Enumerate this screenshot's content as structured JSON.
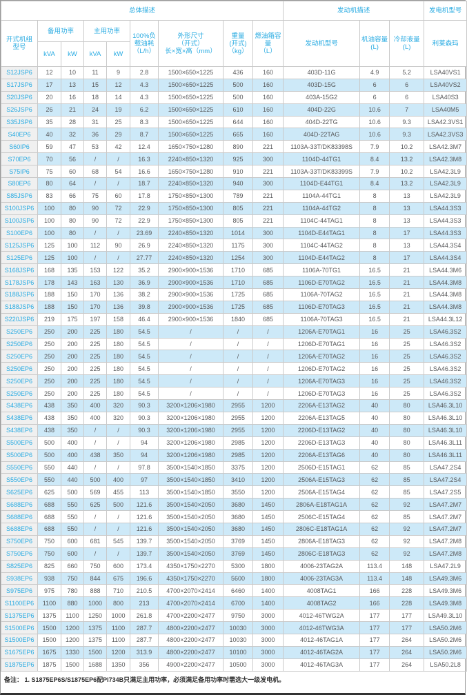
{
  "colors": {
    "accent_cyan": "#29abe2",
    "row_stripe_blue": "#cde9f8",
    "model_column_gray": "#f0f0f0",
    "border_gray": "#c9c9c9"
  },
  "table": {
    "header": {
      "overall_group": "总体描述",
      "engine_group": "发动机描述",
      "generator_group": "发电机型号",
      "model": "开式机组\n型号",
      "standby_power": "备用功率",
      "prime_power": "主用功率",
      "kva": "kVA",
      "kw": "kW",
      "fuel_consumption": "100%负\n载油耗\n（L/h）",
      "dimensions": "外形尺寸\n（开式）\n长×宽×高（mm）",
      "weight": "重量\n(开式)\n（kg）",
      "fuel_tank": "燃油箱容\n量\n（L）",
      "engine_model": "发动机型号",
      "oil_capacity": "机油容量\n(L)",
      "coolant_capacity": "冷却液量\n(L)",
      "alternator": "利莱森玛"
    },
    "rows": [
      [
        "S12JSP6",
        "12",
        "10",
        "11",
        "9",
        "2.8",
        "1500×650×1225",
        "436",
        "160",
        "403D-11G",
        "4.9",
        "5.2",
        "LSA40VS1"
      ],
      [
        "S17JSP6",
        "17",
        "13",
        "15",
        "12",
        "4.3",
        "1500×650×1225",
        "500",
        "160",
        "403D-15G",
        "6",
        "6",
        "LSA40VS2"
      ],
      [
        "S20JSP6",
        "20",
        "16",
        "18",
        "14",
        "4.3",
        "1500×650×1225",
        "500",
        "160",
        "403A-15G2",
        "6",
        "6",
        "LSA40S3"
      ],
      [
        "S26JSP6",
        "26",
        "21",
        "24",
        "19",
        "6.2",
        "1500×650×1225",
        "610",
        "160",
        "404D-22G",
        "10.6",
        "7",
        "LSA40M5"
      ],
      [
        "S35JSP6",
        "35",
        "28",
        "31",
        "25",
        "8.3",
        "1500×650×1225",
        "644",
        "160",
        "404D-22TG",
        "10.6",
        "9.3",
        "LSA42.3VS1"
      ],
      [
        "S40EP6",
        "40",
        "32",
        "36",
        "29",
        "8.7",
        "1500×650×1225",
        "665",
        "160",
        "404D-22TAG",
        "10.6",
        "9.3",
        "LSA42.3VS3"
      ],
      [
        "S60IP6",
        "59",
        "47",
        "53",
        "42",
        "12.4",
        "1650×750×1280",
        "890",
        "221",
        "1103A-33T/DK83398S",
        "7.9",
        "10.2",
        "LSA42.3M7"
      ],
      [
        "S70EP6",
        "70",
        "56",
        "/",
        "/",
        "16.3",
        "2240×850×1320",
        "925",
        "300",
        "1104D-44TG1",
        "8.4",
        "13.2",
        "LSA42.3M8"
      ],
      [
        "S75IP6",
        "75",
        "60",
        "68",
        "54",
        "16.6",
        "1650×750×1280",
        "910",
        "221",
        "1103A-33T/DK83399S",
        "7.9",
        "10.2",
        "LSA42.3L9"
      ],
      [
        "S80EP6",
        "80",
        "64",
        "/",
        "/",
        "18.7",
        "2240×850×1320",
        "940",
        "300",
        "1104D-E44TG1",
        "8.4",
        "13.2",
        "LSA42.3L9"
      ],
      [
        "S85JSP6",
        "83",
        "66",
        "75",
        "60",
        "17.8",
        "1750×850×1300",
        "789",
        "221",
        "1104A-44TG1",
        "8",
        "13",
        "LSA42.3L9"
      ],
      [
        "S100JSP6",
        "100",
        "80",
        "90",
        "72",
        "22.9",
        "1750×850×1300",
        "805",
        "221",
        "1104A-44TG2",
        "8",
        "13",
        "LSA44.3S3"
      ],
      [
        "S100JSP6",
        "100",
        "80",
        "90",
        "72",
        "22.9",
        "1750×850×1300",
        "805",
        "221",
        "1104C-44TAG1",
        "8",
        "13",
        "LSA44.3S3"
      ],
      [
        "S100EP6",
        "100",
        "80",
        "/",
        "/",
        "23.69",
        "2240×850×1320",
        "1014",
        "300",
        "1104D-E44TAG1",
        "8",
        "17",
        "LSA44.3S3"
      ],
      [
        "S125JSP6",
        "125",
        "100",
        "112",
        "90",
        "26.9",
        "2240×850×1320",
        "1175",
        "300",
        "1104C-44TAG2",
        "8",
        "13",
        "LSA44.3S4"
      ],
      [
        "S125EP6",
        "125",
        "100",
        "/",
        "/",
        "27.77",
        "2240×850×1320",
        "1254",
        "300",
        "1104D-E44TAG2",
        "8",
        "17",
        "LSA44.3S4"
      ],
      [
        "S168JSP6",
        "168",
        "135",
        "153",
        "122",
        "35.2",
        "2900×900×1536",
        "1710",
        "685",
        "1106A-70TG1",
        "16.5",
        "21",
        "LSA44.3M6"
      ],
      [
        "S178JSP6",
        "178",
        "143",
        "163",
        "130",
        "36.9",
        "2900×900×1536",
        "1710",
        "685",
        "1106D-E70TAG2",
        "16.5",
        "21",
        "LSA44.3M8"
      ],
      [
        "S188JSP6",
        "188",
        "150",
        "170",
        "136",
        "38.2",
        "2900×900×1536",
        "1725",
        "685",
        "1106A-70TAG2",
        "16.5",
        "21",
        "LSA44.3M8"
      ],
      [
        "S188JSP6",
        "188",
        "150",
        "170",
        "136",
        "39.8",
        "2900×900×1536",
        "1725",
        "685",
        "1106D-E70TAG3",
        "16.5",
        "21",
        "LSA44.3M8"
      ],
      [
        "S220JSP6",
        "219",
        "175",
        "197",
        "158",
        "46.4",
        "2900×900×1536",
        "1840",
        "685",
        "1106A-70TAG3",
        "16.5",
        "21",
        "LSA44.3L12"
      ],
      [
        "S250EP6",
        "250",
        "200",
        "225",
        "180",
        "54.5",
        "/",
        "/",
        "/",
        "1206A-E70TAG1",
        "16",
        "25",
        "LSA46.3S2"
      ],
      [
        "S250EP6",
        "250",
        "200",
        "225",
        "180",
        "54.5",
        "/",
        "/",
        "/",
        "1206D-E70TAG1",
        "16",
        "25",
        "LSA46.3S2"
      ],
      [
        "S250EP6",
        "250",
        "200",
        "225",
        "180",
        "54.5",
        "/",
        "/",
        "/",
        "1206A-E70TAG2",
        "16",
        "25",
        "LSA46.3S2"
      ],
      [
        "S250EP6",
        "250",
        "200",
        "225",
        "180",
        "54.5",
        "/",
        "/",
        "/",
        "1206D-E70TAG2",
        "16",
        "25",
        "LSA46.3S2"
      ],
      [
        "S250EP6",
        "250",
        "200",
        "225",
        "180",
        "54.5",
        "/",
        "/",
        "/",
        "1206A-E70TAG3",
        "16",
        "25",
        "LSA46.3S2"
      ],
      [
        "S250EP6",
        "250",
        "200",
        "225",
        "180",
        "54.5",
        "/",
        "/",
        "/",
        "1206D-E70TAG3",
        "16",
        "25",
        "LSA46.3S2"
      ],
      [
        "S438EP6",
        "438",
        "350",
        "400",
        "320",
        "90.3",
        "3200×1206×1980",
        "2955",
        "1200",
        "2206A-E13TAG2",
        "40",
        "80",
        "LSA46.3L10"
      ],
      [
        "S438EP6",
        "438",
        "350",
        "400",
        "320",
        "90.3",
        "3200×1206×1980",
        "2955",
        "1200",
        "2206A-E13TAG5",
        "40",
        "80",
        "LSA46.3L10"
      ],
      [
        "S438EP6",
        "438",
        "350",
        "/",
        "/",
        "90.3",
        "3200×1206×1980",
        "2955",
        "1200",
        "2206D-E13TAG2",
        "40",
        "80",
        "LSA46.3L10"
      ],
      [
        "S500EP6",
        "500",
        "400",
        "/",
        "/",
        "94",
        "3200×1206×1980",
        "2985",
        "1200",
        "2206D-E13TAG3",
        "40",
        "80",
        "LSA46.3L11"
      ],
      [
        "S500EP6",
        "500",
        "400",
        "438",
        "350",
        "94",
        "3200×1206×1980",
        "2985",
        "1200",
        "2206A-E13TAG6",
        "40",
        "80",
        "LSA46.3L11"
      ],
      [
        "S550EP6",
        "550",
        "440",
        "/",
        "/",
        "97.8",
        "3500×1540×1850",
        "3375",
        "1200",
        "2506D-E15TAG1",
        "62",
        "85",
        "LSA47.2S4"
      ],
      [
        "S550EP6",
        "550",
        "440",
        "500",
        "400",
        "97",
        "3500×1540×1850",
        "3410",
        "1200",
        "2506A-E15TAG3",
        "62",
        "85",
        "LSA47.2S4"
      ],
      [
        "S625EP6",
        "625",
        "500",
        "569",
        "455",
        "113",
        "3500×1540×1850",
        "3550",
        "1200",
        "2506A-E15TAG4",
        "62",
        "85",
        "LSA47.2S5"
      ],
      [
        "S688EP6",
        "688",
        "550",
        "625",
        "500",
        "121.6",
        "3500×1540×2050",
        "3680",
        "1450",
        "2806A-E18TAG1A",
        "62",
        "92",
        "LSA47.2M7"
      ],
      [
        "S688EP6",
        "688",
        "550",
        "/",
        "/",
        "121.6",
        "3500×1540×2050",
        "3680",
        "1450",
        "2506C-E15TAG4",
        "62",
        "85",
        "LSA47.2M7"
      ],
      [
        "S688EP6",
        "688",
        "550",
        "/",
        "/",
        "121.6",
        "3500×1540×2050",
        "3680",
        "1450",
        "2806C-E18TAG1A",
        "62",
        "92",
        "LSA47.2M7"
      ],
      [
        "S750EP6",
        "750",
        "600",
        "681",
        "545",
        "139.7",
        "3500×1540×2050",
        "3769",
        "1450",
        "2806A-E18TAG3",
        "62",
        "92",
        "LSA47.2M8"
      ],
      [
        "S750EP6",
        "750",
        "600",
        "/",
        "/",
        "139.7",
        "3500×1540×2050",
        "3769",
        "1450",
        "2806C-E18TAG3",
        "62",
        "92",
        "LSA47.2M8"
      ],
      [
        "S825EP6",
        "825",
        "660",
        "750",
        "600",
        "173.4",
        "4350×1750×2270",
        "5300",
        "1800",
        "4006-23TAG2A",
        "113.4",
        "148",
        "LSA47.2L9"
      ],
      [
        "S938EP6",
        "938",
        "750",
        "844",
        "675",
        "196.6",
        "4350×1750×2270",
        "5600",
        "1800",
        "4006-23TAG3A",
        "113.4",
        "148",
        "LSA49.3M6"
      ],
      [
        "S975EP6",
        "975",
        "780",
        "888",
        "710",
        "210.5",
        "4700×2070×2414",
        "6460",
        "1400",
        "4008TAG1",
        "166",
        "228",
        "LSA49.3M6"
      ],
      [
        "S1100EP6",
        "1100",
        "880",
        "1000",
        "800",
        "213",
        "4700×2070×2414",
        "6700",
        "1400",
        "4008TAG2",
        "166",
        "228",
        "LSA49.3M8"
      ],
      [
        "S1375EP6",
        "1375",
        "1100",
        "1250",
        "1000",
        "261.8",
        "4700×2200×2477",
        "9750",
        "3000",
        "4012-46TWG2A",
        "177",
        "177",
        "LSA49.3L10"
      ],
      [
        "S1500EP6",
        "1500",
        "1200",
        "1375",
        "1100",
        "287.7",
        "4800×2200×2477",
        "10030",
        "3000",
        "4012-46TWG3A",
        "177",
        "177",
        "LSA50.2M6"
      ],
      [
        "S1500EP6",
        "1500",
        "1200",
        "1375",
        "1100",
        "287.7",
        "4800×2200×2477",
        "10030",
        "3000",
        "4012-46TAG1A",
        "177",
        "264",
        "LSA50.2M6"
      ],
      [
        "S1675EP6",
        "1675",
        "1330",
        "1500",
        "1200",
        "313.9",
        "4800×2200×2477",
        "10100",
        "3000",
        "4012-46TAG2A",
        "177",
        "264",
        "LSA50.2M6"
      ],
      [
        "S1875EP6",
        "1875",
        "1500",
        "1688",
        "1350",
        "356",
        "4900×2200×2477",
        "10500",
        "3000",
        "4012-46TAG3A",
        "177",
        "264",
        "LSA50.2L8"
      ]
    ],
    "note": "备注：  1. S1875EP6S/S1875EP6配PI734B只满足主用功率，必须满足备用功率时需选大一级发电机。"
  }
}
